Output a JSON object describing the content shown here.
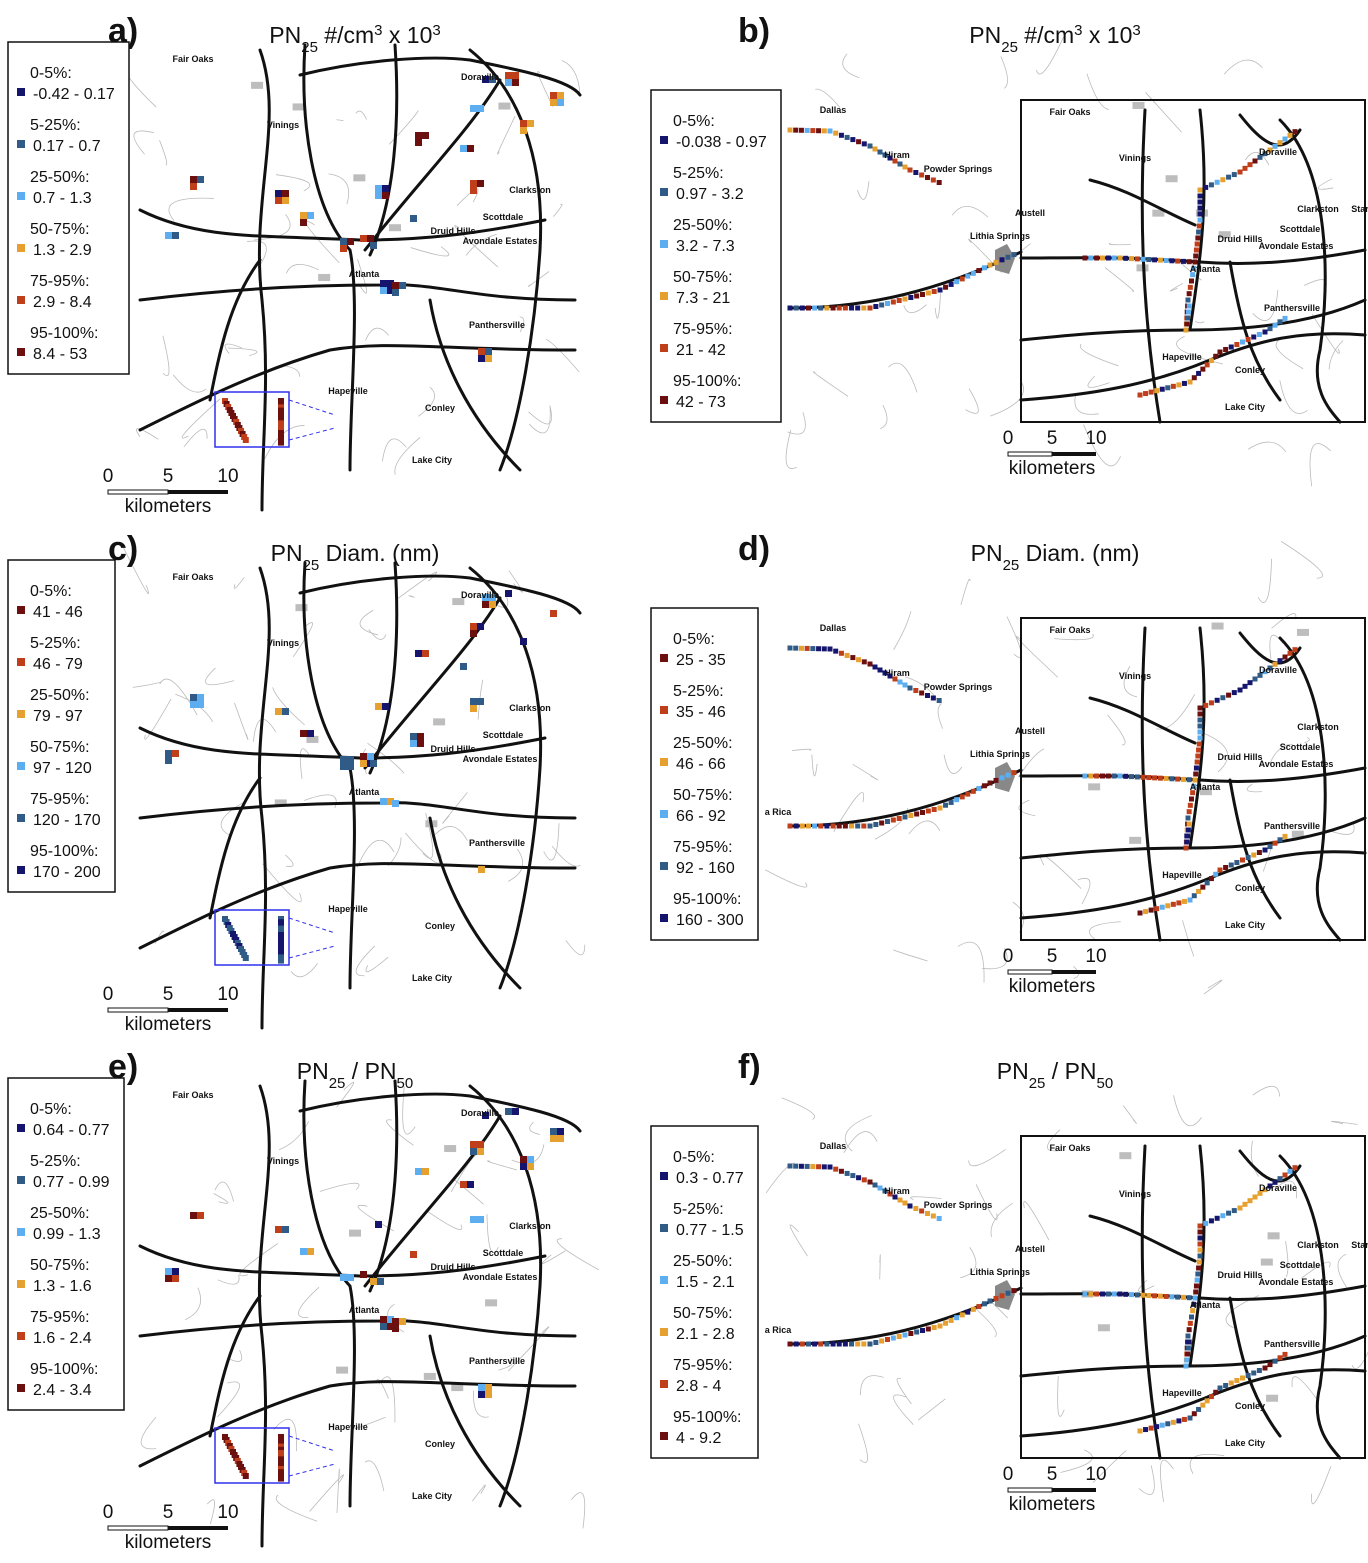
{
  "panels": [
    {
      "label": "a)",
      "title": [
        {
          "text": "PN",
          "style": "normal"
        },
        {
          "text": "25",
          "style": "sub"
        },
        {
          "text": " #/cm",
          "style": "normal"
        },
        {
          "text": "3",
          "style": "sup"
        },
        {
          "text": " x 10",
          "style": "normal"
        },
        {
          "text": "3",
          "style": "sup"
        }
      ],
      "legend": [
        {
          "range": "0-5%:",
          "values": "-0.42 - 0.17",
          "color": "#15156e"
        },
        {
          "range": "5-25%:",
          "values": "0.17 - 0.7",
          "color": "#2f5b86"
        },
        {
          "range": "25-50%:",
          "values": "0.7 - 1.3",
          "color": "#5caef0"
        },
        {
          "range": "50-75%:",
          "values": "1.3 - 2.9",
          "color": "#e5a02f"
        },
        {
          "range": "75-95%:",
          "values": "2.9 - 8.4",
          "color": "#bf3f1b"
        },
        {
          "range": "95-100%:",
          "values": "8.4 - 53",
          "color": "#6b0f0f"
        }
      ],
      "places": [
        "Fair Oaks",
        "Doraville",
        "Vinings",
        "Clarkston",
        "Scottdale",
        "Druid Hills",
        "Avondale Estates",
        "Atlanta",
        "Panthersville",
        "Hapeville",
        "Conley",
        "Lake City"
      ],
      "scale": [
        "0",
        "5",
        "10"
      ],
      "scale_unit": "kilometers"
    },
    {
      "label": "b)",
      "title": [
        {
          "text": "PN",
          "style": "normal"
        },
        {
          "text": "25",
          "style": "sub"
        },
        {
          "text": " #/cm",
          "style": "normal"
        },
        {
          "text": "3",
          "style": "sup"
        },
        {
          "text": " x 10",
          "style": "normal"
        },
        {
          "text": "3",
          "style": "sup"
        }
      ],
      "legend": [
        {
          "range": "0-5%:",
          "values": "-0.038 - 0.97",
          "color": "#15156e"
        },
        {
          "range": "5-25%:",
          "values": "0.97 - 3.2",
          "color": "#2f5b86"
        },
        {
          "range": "25-50%:",
          "values": "3.2 - 7.3",
          "color": "#5caef0"
        },
        {
          "range": "50-75%:",
          "values": "7.3 - 21",
          "color": "#e5a02f"
        },
        {
          "range": "75-95%:",
          "values": "21 - 42",
          "color": "#bf3f1b"
        },
        {
          "range": "95-100%:",
          "values": "42 - 73",
          "color": "#6b0f0f"
        }
      ],
      "places": [
        "Dallas",
        "Hiram",
        "Powder Springs",
        "Austell",
        "Lithia Springs",
        "Fair Oaks",
        "Vinings",
        "Doraville",
        "Clarkston",
        "Scottdale",
        "Druid Hills",
        "Avondale Estates",
        "Atlanta",
        "Panthersville",
        "Hapeville",
        "Conley",
        "Lake City",
        "Star"
      ],
      "scale": [
        "0",
        "5",
        "10"
      ],
      "scale_unit": "kilometers"
    },
    {
      "label": "c)",
      "title": [
        {
          "text": "PN",
          "style": "normal"
        },
        {
          "text": "25",
          "style": "sub"
        },
        {
          "text": " Diam. (nm)",
          "style": "normal"
        }
      ],
      "legend": [
        {
          "range": "0-5%:",
          "values": "41 - 46",
          "color": "#6b0f0f"
        },
        {
          "range": "5-25%:",
          "values": "46 - 79",
          "color": "#bf3f1b"
        },
        {
          "range": "25-50%:",
          "values": "79 - 97",
          "color": "#e5a02f"
        },
        {
          "range": "50-75%:",
          "values": "97 - 120",
          "color": "#5caef0"
        },
        {
          "range": "75-95%:",
          "values": "120 - 170",
          "color": "#2f5b86"
        },
        {
          "range": "95-100%:",
          "values": "170 - 200",
          "color": "#15156e"
        }
      ],
      "places": [
        "Fair Oaks",
        "Doraville",
        "Vinings",
        "Clarkston",
        "Scottdale",
        "Druid Hills",
        "Avondale Estates",
        "Atlanta",
        "Panthersville",
        "Hapeville",
        "Conley",
        "Lake City"
      ],
      "scale": [
        "0",
        "5",
        "10"
      ],
      "scale_unit": "kilometers"
    },
    {
      "label": "d)",
      "title": [
        {
          "text": "PN",
          "style": "normal"
        },
        {
          "text": "25",
          "style": "sub"
        },
        {
          "text": " Diam. (nm)",
          "style": "normal"
        }
      ],
      "legend": [
        {
          "range": "0-5%:",
          "values": "25 - 35",
          "color": "#6b0f0f"
        },
        {
          "range": "5-25%:",
          "values": "35 - 46",
          "color": "#bf3f1b"
        },
        {
          "range": "25-50%:",
          "values": "46 - 66",
          "color": "#e5a02f"
        },
        {
          "range": "50-75%:",
          "values": "66 - 92",
          "color": "#5caef0"
        },
        {
          "range": "75-95%:",
          "values": "92 - 160",
          "color": "#2f5b86"
        },
        {
          "range": "95-100%:",
          "values": "160 - 300",
          "color": "#15156e"
        }
      ],
      "places": [
        "Dallas",
        "Hiram",
        "Powder Springs",
        "Austell",
        "Lithia Springs",
        "Fair Oaks",
        "Vinings",
        "Doraville",
        "Clarkston",
        "Scottdale",
        "Druid Hills",
        "Avondale Estates",
        "Atlanta",
        "Panthersville",
        "Hapeville",
        "Conley",
        "Lake City",
        "a Rica"
      ],
      "scale": [
        "0",
        "5",
        "10"
      ],
      "scale_unit": "kilometers"
    },
    {
      "label": "e)",
      "title": [
        {
          "text": "PN",
          "style": "normal"
        },
        {
          "text": "25",
          "style": "sub"
        },
        {
          "text": " /  PN",
          "style": "normal"
        },
        {
          "text": "50",
          "style": "sub"
        }
      ],
      "legend": [
        {
          "range": "0-5%:",
          "values": "0.64 - 0.77",
          "color": "#15156e"
        },
        {
          "range": "5-25%:",
          "values": "0.77 - 0.99",
          "color": "#2f5b86"
        },
        {
          "range": "25-50%:",
          "values": "0.99 - 1.3",
          "color": "#5caef0"
        },
        {
          "range": "50-75%:",
          "values": "1.3 - 1.6",
          "color": "#e5a02f"
        },
        {
          "range": "75-95%:",
          "values": "1.6 - 2.4",
          "color": "#bf3f1b"
        },
        {
          "range": "95-100%:",
          "values": "2.4 - 3.4",
          "color": "#6b0f0f"
        }
      ],
      "places": [
        "Fair Oaks",
        "Doraville",
        "Vinings",
        "Clarkston",
        "Scottdale",
        "Druid Hills",
        "Avondale Estates",
        "Atlanta",
        "Panthersville",
        "Hapeville",
        "Conley",
        "Lake City"
      ],
      "scale": [
        "0",
        "5",
        "10"
      ],
      "scale_unit": "kilometers"
    },
    {
      "label": "f)",
      "title": [
        {
          "text": "PN",
          "style": "normal"
        },
        {
          "text": "25",
          "style": "sub"
        },
        {
          "text": " /  PN",
          "style": "normal"
        },
        {
          "text": "50",
          "style": "sub"
        }
      ],
      "legend": [
        {
          "range": "0-5%:",
          "values": "0.3 - 0.77",
          "color": "#15156e"
        },
        {
          "range": "5-25%:",
          "values": "0.77 - 1.5",
          "color": "#2f5b86"
        },
        {
          "range": "25-50%:",
          "values": "1.5 - 2.1",
          "color": "#5caef0"
        },
        {
          "range": "50-75%:",
          "values": "2.1 - 2.8",
          "color": "#e5a02f"
        },
        {
          "range": "75-95%:",
          "values": "2.8 - 4",
          "color": "#bf3f1b"
        },
        {
          "range": "95-100%:",
          "values": "4 - 9.2",
          "color": "#6b0f0f"
        }
      ],
      "places": [
        "Dallas",
        "Hiram",
        "Powder Springs",
        "Austell",
        "Lithia Springs",
        "Fair Oaks",
        "Vinings",
        "Doraville",
        "Clarkston",
        "Scottdale",
        "Druid Hills",
        "Avondale Estates",
        "Atlanta",
        "Panthersville",
        "Hapeville",
        "Conley",
        "Lake City",
        "Star",
        "a Rica"
      ],
      "scale": [
        "0",
        "5",
        "10"
      ],
      "scale_unit": "kilometers"
    }
  ]
}
